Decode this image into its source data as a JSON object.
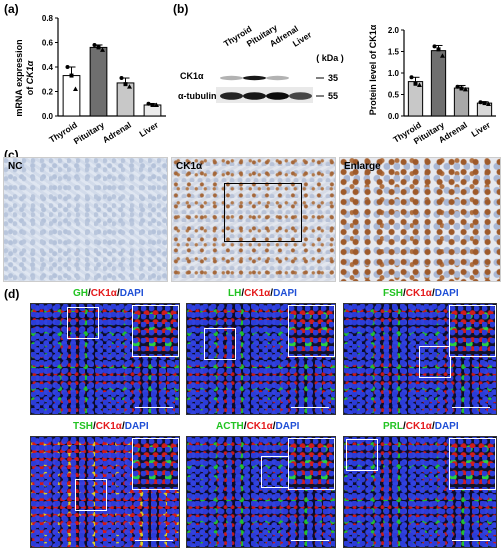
{
  "panel_labels": {
    "a": "(a)",
    "b": "(b)",
    "c": "(c)",
    "d": "(d)"
  },
  "chart_data": [
    {
      "type": "bar",
      "panel": "a",
      "categories": [
        "Thyroid",
        "Pituitary",
        "Adrenal",
        "Liver"
      ],
      "values": [
        0.33,
        0.56,
        0.27,
        0.09
      ],
      "errors": [
        0.07,
        0.02,
        0.04,
        0.01
      ],
      "points": [
        [
          0.4,
          0.33,
          0.22
        ],
        [
          0.58,
          0.56,
          0.54
        ],
        [
          0.31,
          0.26,
          0.24
        ],
        [
          0.1,
          0.09,
          0.09
        ]
      ],
      "bar_colors": [
        "#ffffff",
        "#6f6f6f",
        "#c8c8c8",
        "#ececec"
      ],
      "ylabel_line1": "mRNA expression",
      "ylabel_line2_prefix": "of ",
      "ylabel_line2_gene": "CK1α",
      "yticks": [
        "0.0",
        "0.2",
        "0.4",
        "0.6",
        "0.8"
      ],
      "ylim": [
        0,
        0.8
      ]
    },
    {
      "type": "bar",
      "panel": "b",
      "categories": [
        "Thyroid",
        "Pituitary",
        "Adrenal",
        "Liver"
      ],
      "values": [
        0.8,
        1.52,
        0.65,
        0.3
      ],
      "errors": [
        0.1,
        0.12,
        0.06,
        0.03
      ],
      "points": [
        [
          0.9,
          0.75,
          0.72
        ],
        [
          1.62,
          1.55,
          1.4
        ],
        [
          0.68,
          0.64,
          0.62
        ],
        [
          0.32,
          0.3,
          0.28
        ]
      ],
      "bar_colors": [
        "#c8c8c8",
        "#6f6f6f",
        "#a8a8a8",
        "#d8d8d8"
      ],
      "ylabel": "Protein level of CK1α",
      "yticks": [
        "0.0",
        "0.5",
        "1.0",
        "1.5",
        "2.0"
      ],
      "ylim": [
        0,
        2.0
      ]
    }
  ],
  "western_blot": {
    "lanes": [
      "Thyroid",
      "Pituitary",
      "Adrenal",
      "Liver"
    ],
    "rows": [
      {
        "label": "CK1α",
        "intensity": [
          0.3,
          0.9,
          0.3,
          0.0
        ]
      },
      {
        "label": "α-tubulin",
        "intensity": [
          0.85,
          0.9,
          0.95,
          0.7
        ]
      }
    ],
    "kda_header": "( kDa )",
    "markers": [
      "35",
      "55"
    ]
  },
  "ihc_panels": {
    "nc": "NC",
    "ck": "CK1α",
    "enlarge": "Enlarge"
  },
  "fluor_panels": [
    {
      "marker": "GH",
      "rest": "/CK1α/DAPI",
      "marker_color": "#22c322"
    },
    {
      "marker": "LH",
      "rest": "/CK1α/DAPI",
      "marker_color": "#22c322"
    },
    {
      "marker": "FSH",
      "rest": "/CK1α/DAPI",
      "marker_color": "#22c322"
    },
    {
      "marker": "TSH",
      "rest": "/CK1α/DAPI",
      "marker_color": "#22c322"
    },
    {
      "marker": "ACTH",
      "rest": "/CK1α/DAPI",
      "marker_color": "#22c322"
    },
    {
      "marker": "PRL",
      "rest": "/CK1α/DAPI",
      "marker_color": "#22c322"
    }
  ],
  "colors": {
    "ck1a": "#e41a1c",
    "dapi": "#1f4fd6",
    "marker": "#22c322"
  }
}
